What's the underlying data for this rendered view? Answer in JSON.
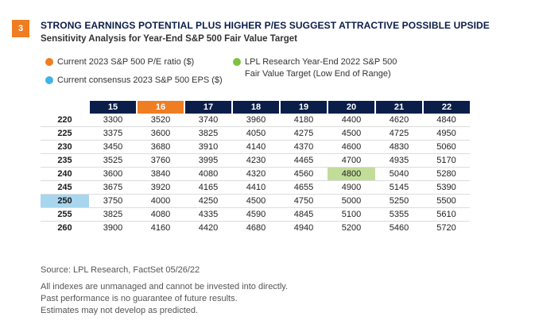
{
  "badge": "3",
  "title": "STRONG EARNINGS POTENTIAL PLUS HIGHER P/ES SUGGEST ATTRACTIVE POSSIBLE UPSIDE",
  "subtitle": "Sensitivity Analysis for Year-End S&P 500 Fair Value Target",
  "legend": {
    "pe": {
      "label": "Current 2023 S&P 500 P/E ratio ($)",
      "color": "#ef7d22"
    },
    "eps": {
      "label": "Current consensus 2023 S&P 500 EPS ($)",
      "color": "#3fb4e5"
    },
    "target": {
      "label_line1": "LPL Research Year-End 2022 S&P 500",
      "label_line2": "Fair Value Target (Low End of Range)",
      "color": "#7dc242"
    }
  },
  "colors": {
    "header": "#0b1e4a",
    "pe_highlight": "#ef7d22",
    "eps_highlight": "#a8d6ee",
    "target_highlight": "#c2dd9a"
  },
  "chart_data": {
    "type": "table",
    "columns": [
      "15",
      "16",
      "17",
      "18",
      "19",
      "20",
      "21",
      "22"
    ],
    "highlight_column": "16",
    "highlight_row": "250",
    "highlight_cell": {
      "row": "240",
      "column": "20"
    },
    "rows": [
      {
        "label": "220",
        "values": [
          "3300",
          "3520",
          "3740",
          "3960",
          "4180",
          "4400",
          "4620",
          "4840"
        ]
      },
      {
        "label": "225",
        "values": [
          "3375",
          "3600",
          "3825",
          "4050",
          "4275",
          "4500",
          "4725",
          "4950"
        ]
      },
      {
        "label": "230",
        "values": [
          "3450",
          "3680",
          "3910",
          "4140",
          "4370",
          "4600",
          "4830",
          "5060"
        ]
      },
      {
        "label": "235",
        "values": [
          "3525",
          "3760",
          "3995",
          "4230",
          "4465",
          "4700",
          "4935",
          "5170"
        ]
      },
      {
        "label": "240",
        "values": [
          "3600",
          "3840",
          "4080",
          "4320",
          "4560",
          "4800",
          "5040",
          "5280"
        ]
      },
      {
        "label": "245",
        "values": [
          "3675",
          "3920",
          "4165",
          "4410",
          "4655",
          "4900",
          "5145",
          "5390"
        ]
      },
      {
        "label": "250",
        "values": [
          "3750",
          "4000",
          "4250",
          "4500",
          "4750",
          "5000",
          "5250",
          "5500"
        ]
      },
      {
        "label": "255",
        "values": [
          "3825",
          "4080",
          "4335",
          "4590",
          "4845",
          "5100",
          "5355",
          "5610"
        ]
      },
      {
        "label": "260",
        "values": [
          "3900",
          "4160",
          "4420",
          "4680",
          "4940",
          "5200",
          "5460",
          "5720"
        ]
      }
    ]
  },
  "source": "Source: LPL Research, FactSet  05/26/22",
  "disclaimer": [
    "All indexes are unmanaged and cannot be invested into directly.",
    "Past performance is no guarantee of future results.",
    "Estimates may not develop as predicted."
  ]
}
